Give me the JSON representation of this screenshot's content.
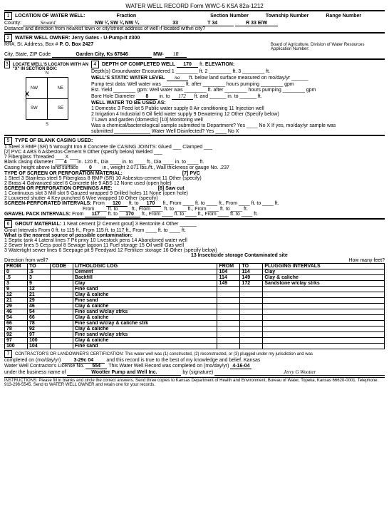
{
  "form_header": "WATER WELL RECORD   Form WWC-5   KSA 82a-1212",
  "sec1_label": "LOCATION OF WATER WELL:",
  "county_label": "County:",
  "county": "Seward",
  "fraction_label": "Fraction",
  "fraction": "NW ¼  SW ¼  NW ¼",
  "section_label": "Section Number",
  "section": "33",
  "township_label": "Township Number",
  "township": "T  34",
  "range_label": "Range Number",
  "range": "R  33  E/W",
  "distance_q": "Distance and direction from nearest town or city/street address of well if located within city?",
  "sec2_label": "WATER WELL OWNER:",
  "owner": "Jerry Gates - U-Pump-It #300",
  "rr_lbl": "RR#, St. Address, Box #",
  "rr": "P. O. Box 2427",
  "city_lbl": "City, State, ZIP Code",
  "city": "Garden City, Ks  67846",
  "mw_lbl": "MW-",
  "mw": "1R",
  "board_text": "Board of Agriculture, Division of Water Resources\nApplication Number:",
  "sec3_label": "LOCATE WELL'S LOCATON WITH AN \"X\" IN SECTION BOX:",
  "compass": {
    "N": "N",
    "S": "S",
    "E": "E",
    "W": "W",
    "NW": "NW",
    "NE": "NE",
    "SW": "SW",
    "SE": "SE"
  },
  "oneMi": "1 Mile",
  "sec4_label": "DEPTH OF COMPLETED WELL",
  "depth_val": "170",
  "depth_unit": "ft.",
  "elev_lbl": "ELEVATION:",
  "depths_gw": "Depth(s) Groundwater Encountered   1 ________ ft.  2 ________ ft.  3 ________ ft.",
  "static_lbl": "WELL'S STATIC WATER LEVEL",
  "static_val": "na",
  "static_txt": "ft. below land surface measured on mo/day/yr ______",
  "pump_txt": "Pump test data:  Well water was ________ ft. after ________ hours pumping ________ gpm",
  "est_txt": "Est. Yield ________ gpm:  Well water was ________ ft. after ________ hours pumping ________ gpm",
  "bore_lbl": "Bore Hole Diameter",
  "bore_d": "8",
  "bore_to": "in. to",
  "bore_to_val": "172",
  "bore_rest": "ft. and ______ in. to ______ ft.",
  "use_lbl": "WELL WATER TO BE USED AS:",
  "uses": "1 Domestic  3 Feed lot   5 Public water supply   8 Air conditioning   11 Injection well",
  "uses2": "2 Irrigation  4 Industrial   6 Oil field water supply   9 Dewatering   12 Other (Specify below)",
  "uses3": "7 Lawn and garden (domestic)  [10] Monitoring well",
  "chem_q": "Was a chemical/bacteriological sample submitted to Department?  Yes ____  No  X    If yes, mo/day/yr sample was",
  "chem_q2": "submitted _____________   Water Well Disinfected?  Yes ____  No  X",
  "sec5_label": "TYPE OF BLANK CASING USED:",
  "casing_opts": "1 Steel   3 RMP (SR)   5 Wrought Iron   8 Concrete tile   CASING JOINTS: Glued ___ Clamped ___",
  "casing_opts2": "[2] PVC   4 ABS   6 Asbestos-Cement  9 Other (specify below)   Welded ___",
  "casing_opts3": "7 Fiberglass                                                              Threaded ___   X ___",
  "casing_dia_lbl": "Blank casing diameter",
  "casing_dia": "4",
  "casing_dia_rest": "in.   120   ft., Dia ____ in. to ____ ft., Dia ____ in. to ____ ft.",
  "casing_h_lbl": "Casing height above land surface",
  "casing_h": "0",
  "casing_h_rest": "in., weight  2.071  lbs./ft., Wall thickness or gauge No.  .237",
  "screen_lbl": "TYPE OF SCREEN OR PERFORATION MATERIAL:",
  "screen_sel": "[7] PVC",
  "screen_opts": "1 Steel   3 Stainless steel   5 Fiberglass   8 RMP (SR)   10 Asbestos-cement   11 Other (specify)",
  "screen_opts2": "2 Brass   4 Galvanized steel   6 Concrete tile   9 ABS   12 None used (open hole)",
  "open_lbl": "SCREEN OR PERFORATION OPENINGS ARE:",
  "open_sel": "[8] Saw cut",
  "open_opts": "1 Continuous slot   3 Mill slot   5 Gauzed wrapped   9 Drilled holes   11 None (open hole)",
  "open_opts2": "2 Louvered shutter   4 Key punched   6 Wire wrapped   10 Other (specify)",
  "open_opts3": "7 Torch cut",
  "perf_lbl": "SCREEN-PERFORATED INTERVALS:",
  "perf_from": "120",
  "perf_to": "170",
  "gravel_lbl": "GRAVEL PACK INTERVALS:",
  "gravel_from": "117",
  "gravel_to": "170",
  "sec6_label": "GROUT MATERIAL:",
  "grout_sel": "1 Neat cement   [2 Cement grout]   3 Bentonite   4 Other ______",
  "grout_int": "Grout Intervals From  0  ft. to  115  ft., From  115  ft. to  117  ft., From ____ ft. to ____ ft.",
  "contam_lbl": "What is the nearest source of possible contamination:",
  "contam_opts": "1 Septic tank  4 Lateral lines  7 Pit privy  10 Livestock pens  14 Abandoned water well",
  "contam_opts2": "2 Sewer lines  5 Cess pool  8 Sewage lagoon  11 Fuel storage  15 Oil well/ Gas well",
  "contam_opts3": "3 Watertight sewer lines  6 Seepage pit  9 Feedyard  12 Fertilizer storage  16 Other (specify below)",
  "contam_opts4": "13 Insecticide storage   Contaminated site",
  "dir_lbl": "Direction from well?",
  "howmany": "How many feet?",
  "log_cols": [
    "FROM",
    "TO",
    "CODE",
    "LITHOLOGIC LOG",
    "FROM",
    "TO",
    "PLUGGING INTERVALS"
  ],
  "log_rows": [
    [
      "0",
      ".5",
      "",
      "Cement",
      "104",
      "114",
      "Clay"
    ],
    [
      ".5",
      "3",
      "",
      "Backfill",
      "114",
      "149",
      "Clay & caliche"
    ],
    [
      "3",
      "9",
      "",
      "Clay",
      "149",
      "172",
      "Sandstone w/clay strks"
    ],
    [
      "9",
      "12",
      "",
      "Fine sand",
      "",
      "",
      ""
    ],
    [
      "12",
      "21",
      "",
      "Clay & caliche",
      "",
      "",
      ""
    ],
    [
      "21",
      "29",
      "",
      "Fine sand",
      "",
      "",
      ""
    ],
    [
      "29",
      "46",
      "",
      "Clay & caliche",
      "",
      "",
      ""
    ],
    [
      "46",
      "54",
      "",
      "Fine sand w/clay strks",
      "",
      "",
      ""
    ],
    [
      "54",
      "66",
      "",
      "Clay & caliche",
      "",
      "",
      ""
    ],
    [
      "66",
      "78",
      "",
      "Fine sand w/clay & caliche strk",
      "",
      "",
      ""
    ],
    [
      "78",
      "92",
      "",
      "Clay & caliche",
      "",
      "",
      ""
    ],
    [
      "92",
      "97",
      "",
      "Fine sand w/clay strks",
      "",
      "",
      ""
    ],
    [
      "97",
      "100",
      "",
      "Clay & caliche",
      "",
      "",
      ""
    ],
    [
      "100",
      "104",
      "",
      "Fine sand",
      "",
      "",
      ""
    ]
  ],
  "sec7_label": "CONTRACTOR'S OR LANDOWNER'S CERTIFICATION: This water well was (1) constructed, (2) reconstructed, or (3) plugged under my jurisdiction and was",
  "completed_lbl": "completed on (mo/day/yr)",
  "completed": "3-29c  04",
  "cert_rest": "and this record is true to the best of my knowledge and belief.  Kansas",
  "lic_lbl": "Water Well Contractor's License No.",
  "lic": "554",
  "rec_completed": "This Water Well Record was completed on (mo/day/yr)",
  "rec_date": "4-16-04",
  "biz_lbl": "under the business name of",
  "biz": "Wootter Pump and Well Inc.",
  "sig_lbl": "by (signature)",
  "instr": "INSTRUCTIONS:  Please fill in blanks and circle the correct answers.  Send three copies to Kansas Department of Health and Environment, Bureau of Water, Topeka, Kansas 66620-0001.  Telephone:  913-296-5545.  Send to WATER WELL OWNER and retain one for your records."
}
